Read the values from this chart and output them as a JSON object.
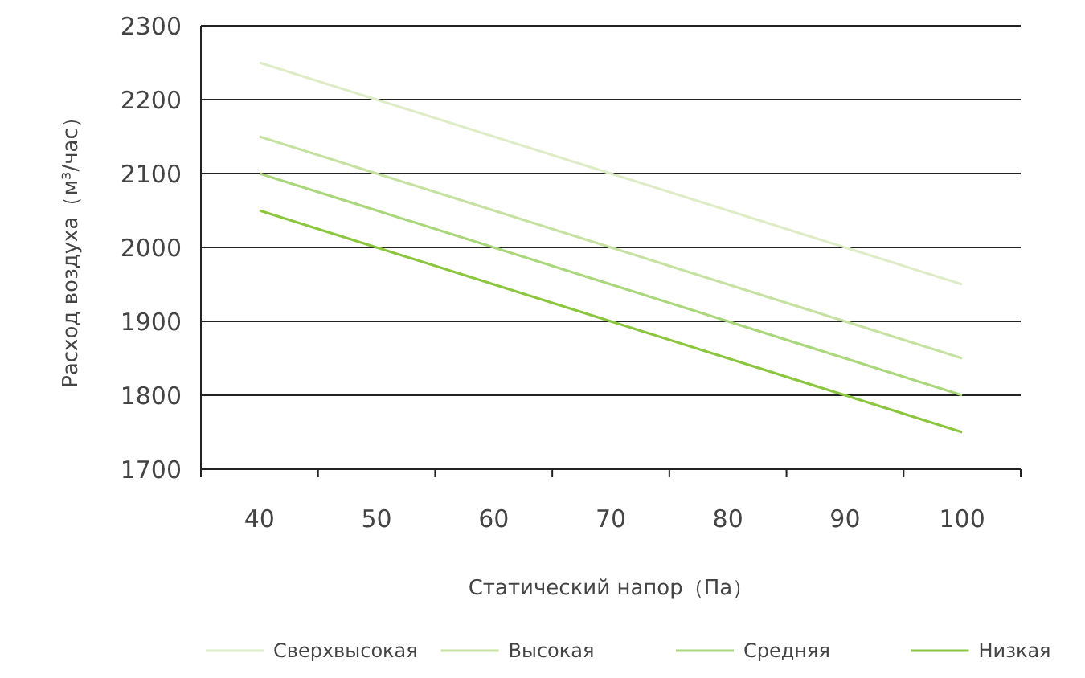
{
  "chart_data": {
    "type": "line",
    "xlabel": "Статический напор（Па）",
    "ylabel": "Расход воздуха（м³/час）",
    "categories": [
      "40",
      "50",
      "60",
      "70",
      "80",
      "90",
      "100"
    ],
    "series": [
      {
        "name": "Сверхвысокая",
        "color": "#deecc8",
        "values": [
          2250,
          2200,
          2150,
          2100,
          2050,
          2000,
          1950
        ]
      },
      {
        "name": "Высокая",
        "color": "#c6e2a2",
        "values": [
          2150,
          2100,
          2050,
          2000,
          1950,
          1900,
          1850
        ]
      },
      {
        "name": "Средняя",
        "color": "#aad67c",
        "values": [
          2100,
          2050,
          2000,
          1950,
          1900,
          1850,
          1800
        ]
      },
      {
        "name": "Низкая",
        "color": "#8cc63f",
        "values": [
          2050,
          2000,
          1950,
          1900,
          1850,
          1800,
          1750
        ]
      }
    ],
    "ylim": [
      1700,
      2300
    ],
    "yticks": [
      1700,
      1800,
      1900,
      2000,
      2100,
      2200,
      2300
    ],
    "grid": "y",
    "legend": "bottom",
    "marker": "none",
    "line_style": "solid"
  }
}
